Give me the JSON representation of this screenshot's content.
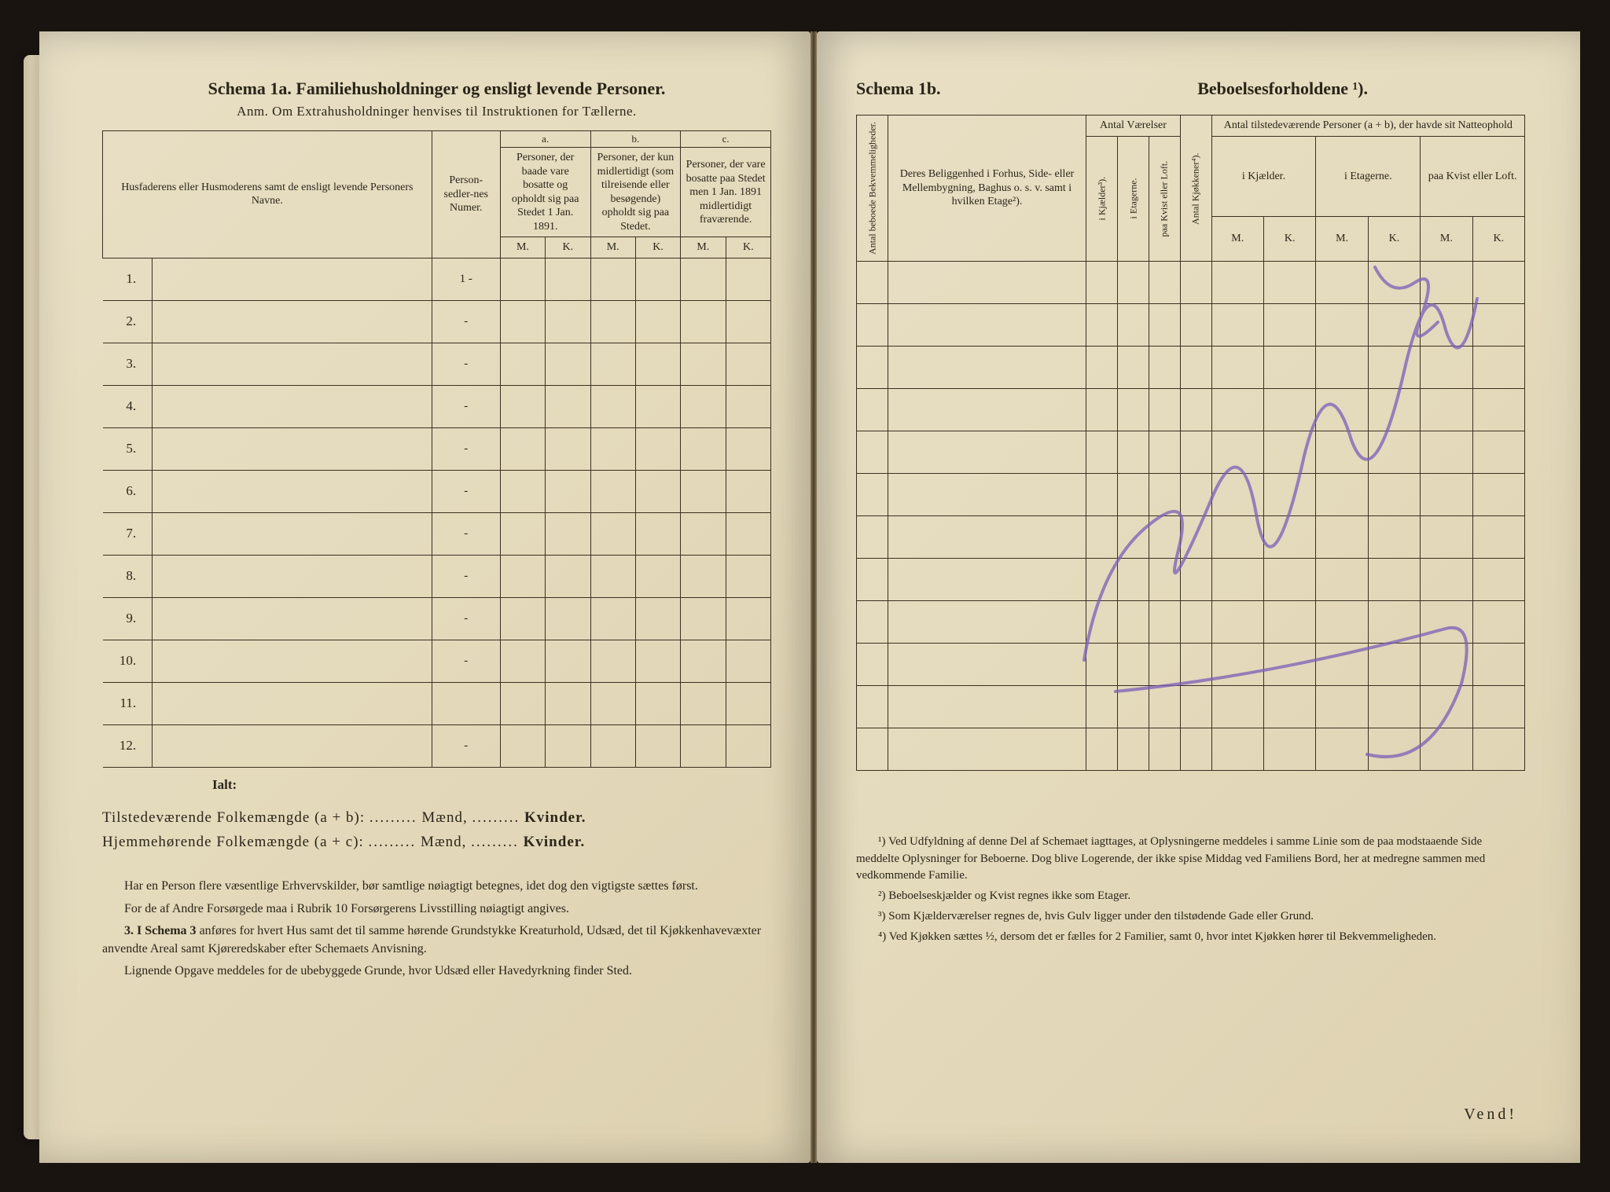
{
  "leftPage": {
    "title": "Schema 1a.  Familiehusholdninger og ensligt levende Personer.",
    "subtitle": "Anm. Om Extrahusholdninger henvises til Instruktionen for Tællerne.",
    "headers": {
      "name": "Husfaderens eller Husmoderens samt de ensligt levende Personers Navne.",
      "personNum": "Person-sedler-nes Numer.",
      "colA": "a.",
      "colB": "b.",
      "colC": "c.",
      "descA": "Personer, der baade vare bosatte og opholdt sig paa Stedet 1 Jan. 1891.",
      "descB": "Personer, der kun midlertidigt (som tilreisende eller besøgende) opholdt sig paa Stedet.",
      "descC": "Personer, der vare bosatte paa Stedet men 1 Jan. 1891 midlertidigt fraværende.",
      "m": "M.",
      "k": "K."
    },
    "rows": [
      "1.",
      "2.",
      "3.",
      "4.",
      "5.",
      "6.",
      "7.",
      "8.",
      "9.",
      "10.",
      "11.",
      "12."
    ],
    "rowMarks": [
      "1 -",
      "-",
      "-",
      "-",
      "-",
      "-",
      "-",
      "-",
      "-",
      "-",
      "",
      "-"
    ],
    "ialt": "Ialt:",
    "totals": {
      "line1_a": "Tilstedeværende Folkemængde (a + b):",
      "line2_a": "Hjemmehørende Folkemængde (a + c):",
      "maend": "Mænd,",
      "kvinder": "Kvinder.",
      "dots": "........."
    },
    "footer": {
      "p1": "Har en Person flere væsentlige Erhvervskilder, bør samtlige nøiagtigt betegnes, idet dog den vigtigste sættes først.",
      "p2": "For de af Andre Forsørgede maa i Rubrik 10 Forsørgerens Livsstilling nøiagtigt angives.",
      "p3a": "3. I Schema 3",
      "p3b": " anføres for hvert Hus samt det til samme hørende Grundstykke Kreaturhold, Udsæd, det til Kjøkkenhavevæxter anvendte Areal samt Kjøreredskaber efter Schemaets Anvisning.",
      "p4": "Lignende Opgave meddeles for de ubebyggede Grunde, hvor Udsæd eller Havedyrkning finder Sted."
    }
  },
  "rightPage": {
    "titleLeft": "Schema 1b.",
    "titleRight": "Beboelsesforholdene ¹).",
    "headers": {
      "antalBek": "Antal beboede Bekvemmeligheder.",
      "belig": "Deres Beliggenhed i Forhus, Side- eller Mellembygning, Baghus o. s. v. samt i hvilken Etage²).",
      "antalVaer": "Antal Værelser",
      "iKjaelder": "i Kjælder³).",
      "iEtagerne": "i Etagerne.",
      "paaKvist": "paa Kvist eller Loft.",
      "antalKjok": "Antal Kjøkkener⁴).",
      "antalTil": "Antal tilstedeværende Personer (a + b), der havde sit Natteophold",
      "iKjaelder2": "i Kjælder.",
      "iEtagerne2": "i Etagerne.",
      "paaKvist2": "paa Kvist eller Loft.",
      "m": "M.",
      "k": "K."
    },
    "footnotes": {
      "f1": "¹) Ved Udfyldning af denne Del af Schemaet iagttages, at Oplysningerne meddeles i samme Linie som de paa modstaaende Side meddelte Oplysninger for Beboerne. Dog blive Logerende, der ikke spise Middag ved Familiens Bord, her at medregne sammen med vedkommende Familie.",
      "f2": "²) Beboelseskjælder og Kvist regnes ikke som Etager.",
      "f3": "³) Som Kjælderværelser regnes de, hvis Gulv ligger under den tilstødende Gade eller Grund.",
      "f4": "⁴) Ved Kjøkken sættes ½, dersom det er fælles for 2 Familier, samt 0, hvor intet Kjøkken hører til Bekvemmeligheden."
    },
    "vend": "Vend!"
  }
}
